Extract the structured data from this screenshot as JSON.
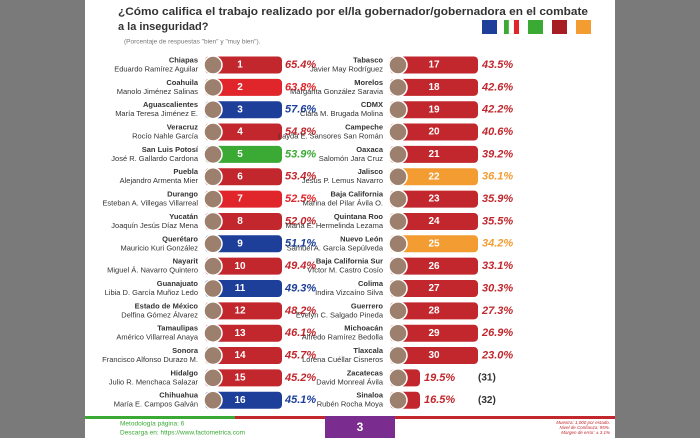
{
  "header": {
    "title_lines": [
      "¿Cómo califica el trabajo realizado por el/la gobernador/gobernadora en el combate",
      "a la inseguridad?"
    ],
    "subtitle": "(Porcentaje de respuestas \"bien\" y \"muy bien\")."
  },
  "rows": [
    {
      "state": "Chiapas",
      "governor": "Eduardo Ramírez Aguilar",
      "rank": "1",
      "value": "65.4%",
      "color": "#c1272d"
    },
    {
      "state": "Coahuila",
      "governor": "Manolo Jiménez Salinas",
      "rank": "2",
      "value": "63.8%",
      "color": "#e0262b"
    },
    {
      "state": "Aguascalientes",
      "governor": "María Teresa Jiménez E.",
      "rank": "3",
      "value": "57.6%",
      "color": "#1d3f9a"
    },
    {
      "state": "Veracruz",
      "governor": "Rocío Nahle García",
      "rank": "4",
      "value": "54.8%",
      "color": "#c1272d"
    },
    {
      "state": "San Luis Potosí",
      "governor": "José R. Gallardo Cardona",
      "rank": "5",
      "value": "53.9%",
      "color": "#3aaa35"
    },
    {
      "state": "Puebla",
      "governor": "Alejandro Armenta Mier",
      "rank": "6",
      "value": "53.4%",
      "color": "#c1272d"
    },
    {
      "state": "Durango",
      "governor": "Esteban A. Villegas Villarreal",
      "rank": "7",
      "value": "52.5%",
      "color": "#e0262b"
    },
    {
      "state": "Yucatán",
      "governor": "Joaquín Jesús Díaz Mena",
      "rank": "8",
      "value": "52.0%",
      "color": "#c1272d"
    },
    {
      "state": "Querétaro",
      "governor": "Mauricio Kuri González",
      "rank": "9",
      "value": "51.1%",
      "color": "#1d3f9a"
    },
    {
      "state": "Nayarit",
      "governor": "Miguel Á. Navarro Quintero",
      "rank": "10",
      "value": "49.4%",
      "color": "#c1272d"
    },
    {
      "state": "Guanajuato",
      "governor": "Libia D. García Muñoz Ledo",
      "rank": "11",
      "value": "49.3%",
      "color": "#1d3f9a"
    },
    {
      "state": "Estado de México",
      "governor": "Delfina Gómez Álvarez",
      "rank": "12",
      "value": "48.2%",
      "color": "#c1272d"
    },
    {
      "state": "Tamaulipas",
      "governor": "Américo Villarreal Anaya",
      "rank": "13",
      "value": "46.1%",
      "color": "#c1272d"
    },
    {
      "state": "Sonora",
      "governor": "Francisco Alfonso Durazo M.",
      "rank": "14",
      "value": "45.7%",
      "color": "#c1272d"
    },
    {
      "state": "Hidalgo",
      "governor": "Julio R. Menchaca Salazar",
      "rank": "15",
      "value": "45.2%",
      "color": "#c1272d"
    },
    {
      "state": "Chihuahua",
      "governor": "María E. Campos Galván",
      "rank": "16",
      "value": "45.1%",
      "color": "#1d3f9a"
    },
    {
      "state": "Tabasco",
      "governor": "Javier May Rodríguez",
      "rank": "17",
      "value": "43.5%",
      "color": "#c1272d"
    },
    {
      "state": "Morelos",
      "governor": "Margarita González Saravia",
      "rank": "18",
      "value": "42.6%",
      "color": "#c1272d"
    },
    {
      "state": "CDMX",
      "governor": "Clara M. Brugada Molina",
      "rank": "19",
      "value": "42.2%",
      "color": "#c1272d"
    },
    {
      "state": "Campeche",
      "governor": "Layda E. Sansores San Román",
      "rank": "20",
      "value": "40.6%",
      "color": "#c1272d"
    },
    {
      "state": "Oaxaca",
      "governor": "Salomón Jara Cruz",
      "rank": "21",
      "value": "39.2%",
      "color": "#c1272d"
    },
    {
      "state": "Jalisco",
      "governor": "Jesús P. Lemus Navarro",
      "rank": "22",
      "value": "36.1%",
      "color": "#f39c32"
    },
    {
      "state": "Baja California",
      "governor": "Marina del Pilar Ávila O.",
      "rank": "23",
      "value": "35.9%",
      "color": "#c1272d"
    },
    {
      "state": "Quintana Roo",
      "governor": "María E. Hermelinda Lezama",
      "rank": "24",
      "value": "35.5%",
      "color": "#c1272d"
    },
    {
      "state": "Nuevo León",
      "governor": "Samuel A. García Sepúlveda",
      "rank": "25",
      "value": "34.2%",
      "color": "#f39c32"
    },
    {
      "state": "Baja California Sur",
      "governor": "Víctor M. Castro Cosío",
      "rank": "26",
      "value": "33.1%",
      "color": "#c1272d"
    },
    {
      "state": "Colima",
      "governor": "Indira Vizcaíno Silva",
      "rank": "27",
      "value": "30.3%",
      "color": "#c1272d"
    },
    {
      "state": "Guerrero",
      "governor": "Evelyn C. Salgado Pineda",
      "rank": "28",
      "value": "27.3%",
      "color": "#c1272d"
    },
    {
      "state": "Michoacán",
      "governor": "Alfredo Ramírez Bedolla",
      "rank": "29",
      "value": "26.9%",
      "color": "#c1272d"
    },
    {
      "state": "Tlaxcala",
      "governor": "Lorena Cuéllar Cisneros",
      "rank": "30",
      "value": "23.0%",
      "color": "#c1272d"
    },
    {
      "state": "Zacatecas",
      "governor": "David Monreal Ávila",
      "rank": "(31)",
      "value": "19.5%",
      "color": "#c1272d"
    },
    {
      "state": "Sinaloa",
      "governor": "Rubén Rocha Moya",
      "rank": "(32)",
      "value": "16.5%",
      "color": "#c1272d"
    }
  ],
  "footer": {
    "method": "Metodología página: 6",
    "download": "Descarga en: https://www.factometrica.com",
    "page": "3",
    "sample": [
      "Muestra: 1,000 por estado.",
      "Nivel de Confianza: 95%.",
      "Margen de error: ± 3.1%"
    ]
  }
}
